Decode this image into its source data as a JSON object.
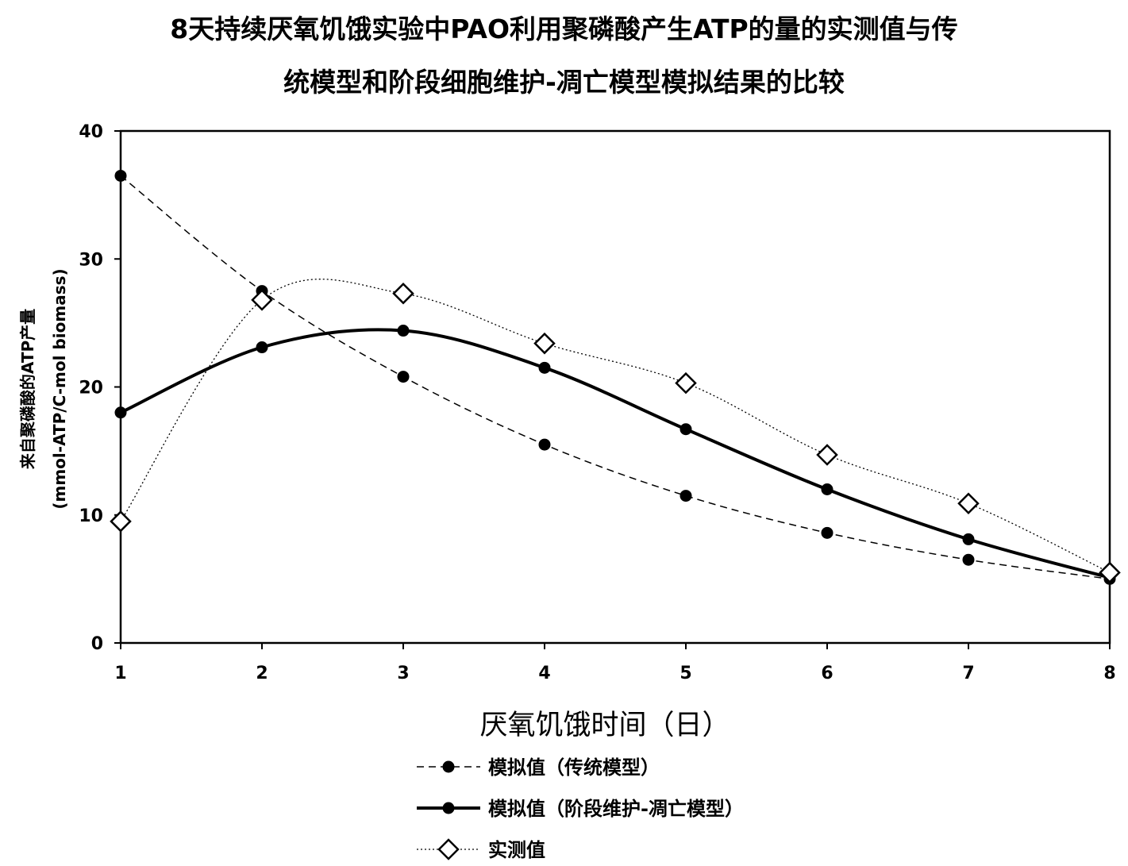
{
  "chart_data": {
    "type": "line",
    "title_line1": "8天持续厌氧饥饿实验中PAO利用聚磷酸产生ATP的量的实测值与传",
    "title_line2": "统模型和阶段细胞维护-凋亡模型模拟结果的比较",
    "xlabel": "厌氧饥饿时间（日）",
    "ylabel_line1": "来自聚磷酸的ATP产量",
    "ylabel_line2": "(mmol-ATP/C-mol biomass)",
    "x": [
      1,
      2,
      3,
      4,
      5,
      6,
      7,
      8
    ],
    "x_tick_labels": [
      "1",
      "2",
      "3",
      "4",
      "5",
      "6",
      "7",
      "8"
    ],
    "y_tick_labels": [
      "0",
      "10",
      "20",
      "30",
      "40"
    ],
    "y_ticks": [
      0,
      10,
      20,
      30,
      40
    ],
    "xlim": [
      1,
      8
    ],
    "ylim": [
      0,
      40
    ],
    "grid": false,
    "legend_position": "bottom",
    "series": [
      {
        "name": "模拟值（传统模型）",
        "values": [
          36.5,
          27.5,
          20.8,
          15.5,
          11.5,
          8.6,
          6.5,
          5.0
        ],
        "line_style": "dashed",
        "marker": "filled-circle",
        "color": "#000000"
      },
      {
        "name": "模拟值（阶段维护-凋亡模型）",
        "values": [
          18.0,
          23.1,
          24.4,
          21.5,
          16.7,
          12.0,
          8.1,
          5.1
        ],
        "line_style": "solid-thick-smooth",
        "marker": "filled-circle",
        "color": "#000000"
      },
      {
        "name": "实测值",
        "values": [
          9.5,
          26.8,
          27.3,
          23.4,
          20.3,
          14.7,
          10.9,
          5.5
        ],
        "line_style": "dotted",
        "marker": "open-diamond",
        "color": "#000000"
      }
    ]
  }
}
